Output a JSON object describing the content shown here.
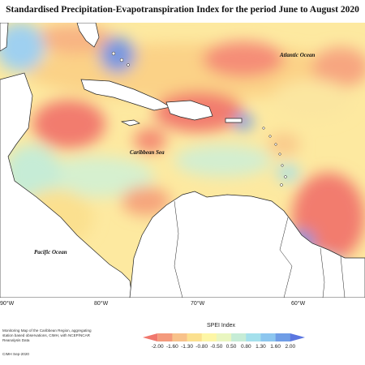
{
  "title": "Standardised Precipitation-Evapotranspiration Index for the period June to August 2020",
  "map": {
    "labels": {
      "atlantic": "Atlantic Ocean",
      "caribbean": "Caribbean Sea",
      "pacific": "Pacific Ocean"
    },
    "longitudes": [
      "90°W",
      "80°W",
      "70°W",
      "60°W"
    ]
  },
  "legend": {
    "title": "SPEI Index",
    "ticks": [
      "-2.00",
      "-1.60",
      "-1.30",
      "-0.80",
      "-0.50",
      "0.50",
      "0.80",
      "1.30",
      "1.60",
      "2.00"
    ],
    "colors": [
      "#f0776d",
      "#f49a7c",
      "#f8c28a",
      "#fbe08f",
      "#fdf6a6",
      "#e9f6c0",
      "#c6ecd6",
      "#a4e0ec",
      "#8cc6ef",
      "#6f9de6",
      "#5a76e0"
    ]
  },
  "footnote": "Monitoring Map of the Caribbean Region, aggregating station based observations, CIMH, with NCEP/NCAR Reanalysis Data",
  "credit": "CIMH Sep-2020"
}
